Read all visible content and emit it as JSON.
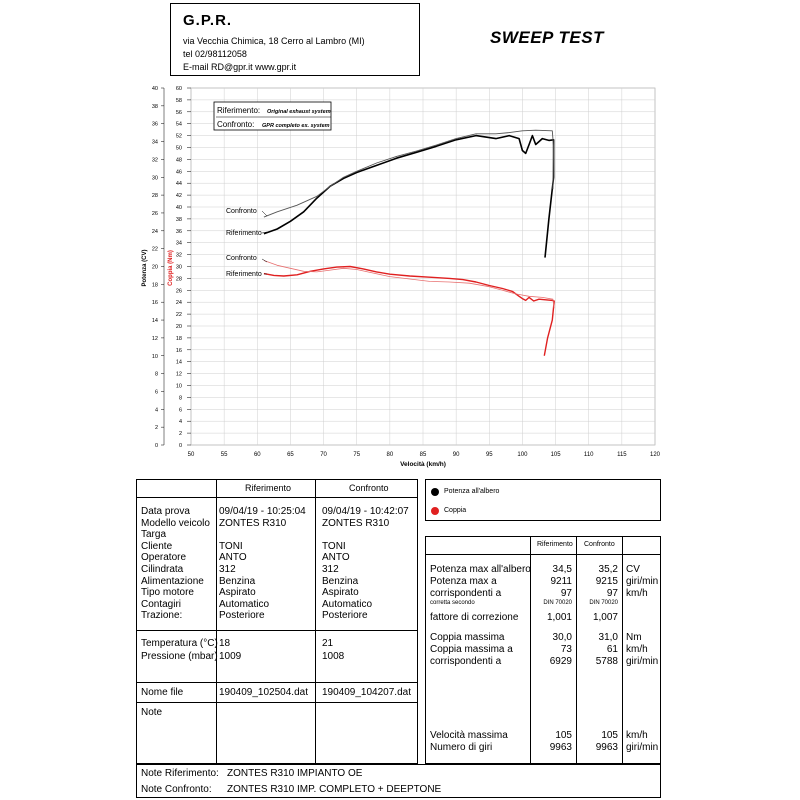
{
  "header": {
    "company": "G.P.R.",
    "address": "via Vecchia Chimica, 18 Cerro al Lambro (MI)",
    "phone": "tel 02/98112058",
    "contacts": "E-mail RD@gpr.it  www.gpr.it"
  },
  "test_title": "SWEEP TEST",
  "legend_box": {
    "riferimento_label": "Riferimento:",
    "riferimento_desc": "Original exhaust system",
    "confronto_label": "Confronto:",
    "confronto_desc": "GPR completo ex. system"
  },
  "chart_labels": {
    "confronto_power": "Confronto",
    "riferimento_power": "Riferimento",
    "confronto_torque": "Confronto",
    "riferimento_torque": "Riferimento"
  },
  "chart_data": {
    "type": "line",
    "xlabel": "Velocità (km/h)",
    "ylabel_power": "Potenza (CV)",
    "ylabel_torque": "Coppia (Nm)",
    "xlim": [
      50,
      120
    ],
    "x_ticks": [
      50,
      55,
      60,
      65,
      70,
      75,
      80,
      85,
      90,
      95,
      100,
      105,
      110,
      115,
      120
    ],
    "ylim_power": [
      0,
      40
    ],
    "y_ticks_power": [
      0,
      2,
      4,
      6,
      8,
      10,
      12,
      14,
      16,
      18,
      20,
      22,
      24,
      26,
      28,
      30,
      32,
      34,
      36,
      38,
      40
    ],
    "ylim_right": [
      0,
      60
    ],
    "y_ticks_right": [
      0,
      2,
      4,
      6,
      8,
      10,
      12,
      14,
      16,
      18,
      20,
      22,
      24,
      26,
      28,
      30,
      32,
      34,
      36,
      38,
      40,
      42,
      44,
      46,
      48,
      50,
      52,
      54,
      56,
      58,
      60
    ],
    "grid": true,
    "series": [
      {
        "name": "Riferimento",
        "quantity": "power",
        "color": "#000000",
        "width": 1.6,
        "points": [
          [
            61,
            35.5
          ],
          [
            63,
            36.3
          ],
          [
            65,
            37.6
          ],
          [
            67,
            39.2
          ],
          [
            69,
            41.5
          ],
          [
            71,
            43.5
          ],
          [
            73,
            44.8
          ],
          [
            75,
            45.8
          ],
          [
            78,
            47
          ],
          [
            81,
            48.2
          ],
          [
            84,
            49.2
          ],
          [
            87,
            50.2
          ],
          [
            90,
            51.3
          ],
          [
            93,
            52
          ],
          [
            96,
            51.5
          ],
          [
            98,
            52
          ],
          [
            99.5,
            51.5
          ],
          [
            100,
            49.5
          ],
          [
            100.5,
            49
          ],
          [
            101,
            50.5
          ],
          [
            101.5,
            52
          ],
          [
            102,
            50.5
          ],
          [
            102.5,
            51
          ],
          [
            103,
            51.5
          ],
          [
            104,
            51.2
          ],
          [
            104.7,
            51.3
          ],
          [
            104.7,
            45
          ],
          [
            104,
            38
          ],
          [
            103.4,
            31.5
          ]
        ]
      },
      {
        "name": "Confronto",
        "quantity": "power",
        "color": "#555555",
        "width": 0.9,
        "points": [
          [
            61,
            38.3
          ],
          [
            63,
            39.2
          ],
          [
            66,
            40.3
          ],
          [
            69,
            41.8
          ],
          [
            71,
            43.5
          ],
          [
            73,
            45
          ],
          [
            75,
            46
          ],
          [
            78,
            47.4
          ],
          [
            81,
            48.5
          ],
          [
            84,
            49.4
          ],
          [
            87,
            50.4
          ],
          [
            90,
            51.5
          ],
          [
            93,
            52.3
          ],
          [
            96,
            52.3
          ],
          [
            98,
            52.5
          ],
          [
            100,
            52.8
          ],
          [
            102,
            52.9
          ],
          [
            104.5,
            52.8
          ],
          [
            104.7,
            50
          ],
          [
            104.6,
            43
          ]
        ]
      },
      {
        "name": "Riferimento",
        "quantity": "torque",
        "color": "#e02020",
        "width": 1.4,
        "points": [
          [
            61,
            28.8
          ],
          [
            62.5,
            28.5
          ],
          [
            64,
            28.4
          ],
          [
            66,
            28.6
          ],
          [
            68,
            29.2
          ],
          [
            70,
            29.6
          ],
          [
            72,
            29.9
          ],
          [
            74,
            30
          ],
          [
            76,
            29.6
          ],
          [
            78,
            29.1
          ],
          [
            80,
            28.7
          ],
          [
            83,
            28.4
          ],
          [
            86,
            28.2
          ],
          [
            89,
            28
          ],
          [
            91,
            27.8
          ],
          [
            93,
            27.4
          ],
          [
            95,
            26.8
          ],
          [
            97,
            26.3
          ],
          [
            98.5,
            25.8
          ],
          [
            99.5,
            25
          ],
          [
            100,
            24.6
          ],
          [
            100.5,
            24.3
          ],
          [
            101,
            24.8
          ],
          [
            101.7,
            24.2
          ],
          [
            102.5,
            24.5
          ],
          [
            103.5,
            24.4
          ],
          [
            104.5,
            24.3
          ],
          [
            104.8,
            24.2
          ],
          [
            104.5,
            21
          ],
          [
            103.8,
            18
          ],
          [
            103.3,
            15
          ]
        ]
      },
      {
        "name": "Confronto",
        "quantity": "torque",
        "color": "#e87070",
        "width": 0.8,
        "points": [
          [
            61,
            31
          ],
          [
            63,
            30.2
          ],
          [
            65,
            29.7
          ],
          [
            67,
            29.2
          ],
          [
            69,
            29.1
          ],
          [
            71,
            29.4
          ],
          [
            73,
            29.7
          ],
          [
            75,
            29.5
          ],
          [
            77,
            29
          ],
          [
            80,
            28.3
          ],
          [
            83,
            27.9
          ],
          [
            86,
            27.5
          ],
          [
            89,
            27.4
          ],
          [
            92,
            27.2
          ],
          [
            95,
            26.6
          ],
          [
            97,
            26
          ],
          [
            99,
            25.4
          ],
          [
            101,
            25
          ],
          [
            103,
            24.8
          ],
          [
            104.6,
            24.5
          ],
          [
            104.8,
            23
          ]
        ]
      }
    ]
  },
  "side_legend": {
    "power": "Potenza all'albero",
    "torque": "Coppia"
  },
  "left_table": {
    "col_ref": "Riferimento",
    "col_conf": "Confronto",
    "rows": [
      {
        "label": "Data prova",
        "ref": "09/04/19 - 10:25:04",
        "conf": "09/04/19 - 10:42:07"
      },
      {
        "label": "Modello veicolo",
        "ref": "ZONTES R310",
        "conf": "ZONTES R310"
      },
      {
        "label": "Targa",
        "ref": "",
        "conf": ""
      },
      {
        "label": "Cliente",
        "ref": "TONI",
        "conf": "TONI"
      },
      {
        "label": "Operatore",
        "ref": "ANTO",
        "conf": "ANTO"
      },
      {
        "label": "Cilindrata",
        "ref": "312",
        "conf": "312"
      },
      {
        "label": "Alimentazione",
        "ref": "Benzina",
        "conf": "Benzina"
      },
      {
        "label": "Tipo motore",
        "ref": "Aspirato",
        "conf": "Aspirato"
      },
      {
        "label": "Contagiri",
        "ref": "Automatico",
        "conf": "Automatico"
      },
      {
        "label": "Trazione:",
        "ref": "Posteriore",
        "conf": "Posteriore"
      }
    ],
    "env_rows": [
      {
        "label": "Temperatura (°C)",
        "ref": "18",
        "conf": "21"
      },
      {
        "label": "Pressione (mbar)",
        "ref": "1009",
        "conf": "1008"
      }
    ],
    "file_label": "Nome file",
    "file_ref": "190409_102504.dat",
    "file_conf": "190409_104207.dat",
    "note_label": "Note"
  },
  "right_table": {
    "col_ref": "Riferimento",
    "col_conf": "Confronto",
    "rows": [
      {
        "label": "Potenza max all'albero",
        "ref": "34,5",
        "conf": "35,2",
        "unit": "CV"
      },
      {
        "label": "Potenza max a",
        "ref": "9211",
        "conf": "9215",
        "unit": "giri/min"
      },
      {
        "label": "corrispondenti a",
        "ref": "97",
        "conf": "97",
        "unit": "km/h"
      },
      {
        "label": "corretta secondo",
        "ref": "DIN 70020",
        "conf": "DIN 70020",
        "unit": "",
        "small": true
      },
      {
        "label": "fattore di correzione",
        "ref": "1,001",
        "conf": "1,007",
        "unit": ""
      }
    ],
    "torque_rows": [
      {
        "label": "Coppia massima",
        "ref": "30,0",
        "conf": "31,0",
        "unit": "Nm"
      },
      {
        "label": "Coppia massima a",
        "ref": "73",
        "conf": "61",
        "unit": "km/h"
      },
      {
        "label": "corrispondenti a",
        "ref": "6929",
        "conf": "5788",
        "unit": "giri/min"
      }
    ],
    "speed_rows": [
      {
        "label": "Velocità massima",
        "ref": "105",
        "conf": "105",
        "unit": "km/h"
      },
      {
        "label": "Numero di giri",
        "ref": "9963",
        "conf": "9963",
        "unit": "giri/min"
      }
    ]
  },
  "notes": {
    "ref_label": "Note Riferimento:",
    "ref_value": "ZONTES R310 IMPIANTO OE",
    "conf_label": "Note Confronto:",
    "conf_value": "ZONTES R310 IMP. COMPLETO + DEEPTONE"
  }
}
